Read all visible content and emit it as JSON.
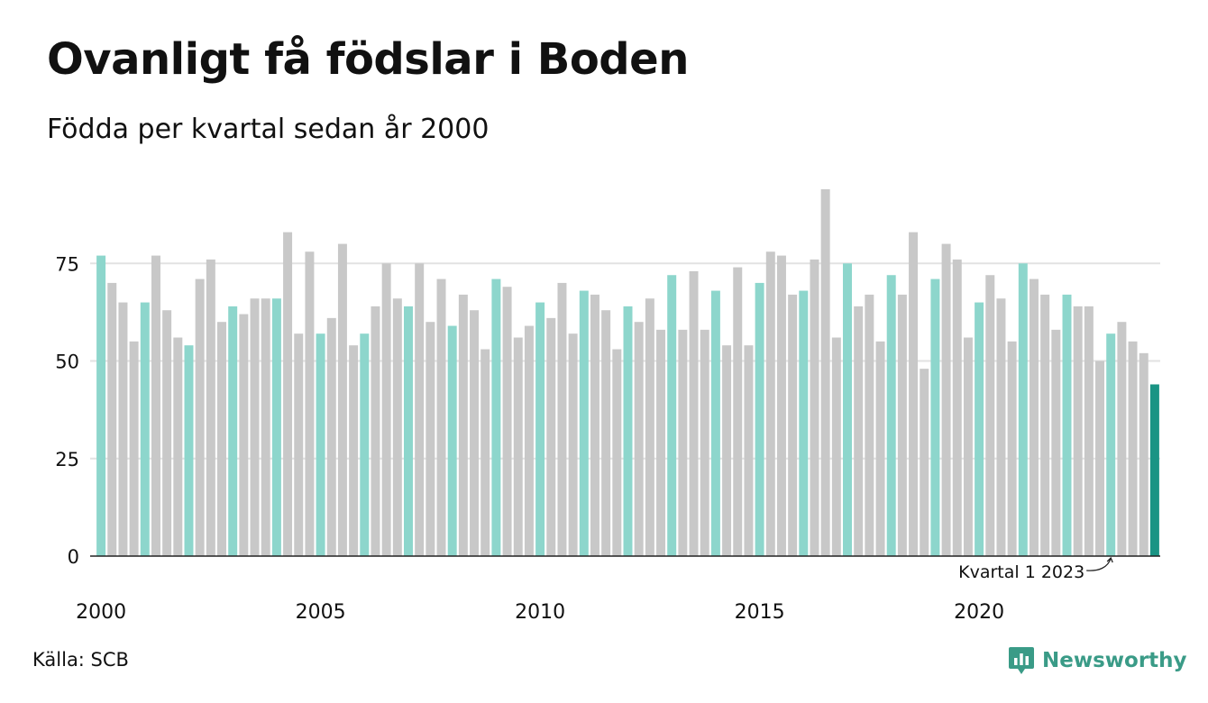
{
  "title": "Ovanligt få födslar i Boden",
  "subtitle": "Födda per kvartal sedan år 2000",
  "source": "Källa: SCB",
  "brand": {
    "name": "Newsworthy",
    "icon": "newsworthy-logo-icon",
    "color": "#3a9b87"
  },
  "annotation": {
    "text": "Kvartal 1 2023"
  },
  "colors": {
    "highlight": "#8dd6cc",
    "other": "#c8c8c8",
    "latest": "#1a9484",
    "grid": "#e2e2e2",
    "axis": "#222222"
  },
  "chart_data": {
    "type": "bar",
    "title": "Ovanligt få födslar i Boden",
    "subtitle": "Födda per kvartal sedan år 2000",
    "xlabel": "",
    "ylabel": "",
    "ylim": [
      0,
      95
    ],
    "yticks": [
      0,
      25,
      50,
      75
    ],
    "xticks": [
      "2000",
      "2005",
      "2010",
      "2015",
      "2020"
    ],
    "grid": true,
    "start_year": 2000,
    "values": [
      77,
      70,
      65,
      55,
      65,
      77,
      63,
      56,
      54,
      71,
      76,
      60,
      64,
      62,
      66,
      66,
      66,
      83,
      57,
      78,
      57,
      61,
      80,
      54,
      57,
      64,
      75,
      66,
      64,
      75,
      60,
      71,
      59,
      67,
      63,
      53,
      71,
      69,
      56,
      59,
      65,
      61,
      70,
      57,
      68,
      67,
      63,
      53,
      64,
      60,
      66,
      58,
      72,
      58,
      73,
      58,
      68,
      54,
      74,
      54,
      70,
      78,
      77,
      67,
      68,
      76,
      94,
      56,
      75,
      64,
      67,
      55,
      72,
      67,
      83,
      48,
      71,
      80,
      76,
      56,
      65,
      72,
      66,
      55,
      75,
      71,
      67,
      58,
      67,
      64,
      64,
      50,
      57,
      60,
      55,
      52,
      44
    ]
  }
}
